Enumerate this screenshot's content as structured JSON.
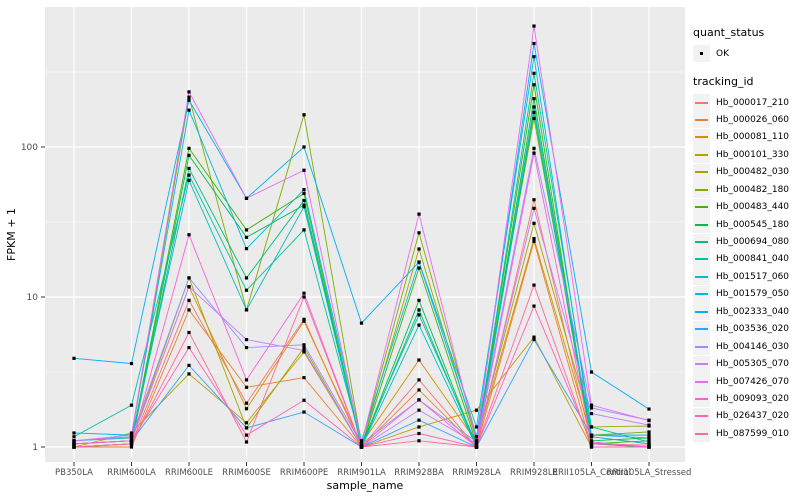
{
  "chart_data": {
    "type": "line",
    "title": "",
    "xlabel": "sample_name",
    "ylabel": "FPKM + 1",
    "y_scale": "log10",
    "y_ticks": [
      1,
      10,
      100
    ],
    "y_minor_gridlines": [
      3.1623,
      31.623,
      316.23
    ],
    "ylim": [
      0.95,
      700
    ],
    "grid": "white-major-and-minor-on-grey-panel",
    "legend_position": "right",
    "point_marker": "small-black-square",
    "panel_color": "#EBEBEB",
    "gridline_color": "#FFFFFF",
    "axis_text_color": "#4D4D4D",
    "categories": [
      "PB350LA",
      "RRIM600LA",
      "RRIM600LE",
      "RRIM600SE",
      "RRIM600PE",
      "RRIM901LA",
      "RRIM928BA",
      "RRIM928LA",
      "RRIM928LE",
      "RRII105LA_Control",
      "RRII105LA_Stressed"
    ],
    "series": [
      {
        "name": "Hb_000017_210",
        "color": "#F8766D",
        "values": [
          1.0,
          1.05,
          9.5,
          1.96,
          7.1,
          1.0,
          2.8,
          1.0,
          44.5,
          1.05,
          1.0
        ]
      },
      {
        "name": "Hb_000026_060",
        "color": "#EA8331",
        "values": [
          1.0,
          1.0,
          8.2,
          2.5,
          2.9,
          1.0,
          2.4,
          1.0,
          23.5,
          1.0,
          1.0
        ]
      },
      {
        "name": "Hb_000081_110",
        "color": "#D89000",
        "values": [
          1.05,
          1.1,
          11.7,
          1.8,
          6.9,
          1.05,
          3.8,
          1.08,
          24.5,
          1.17,
          1.05
        ]
      },
      {
        "name": "Hb_000101_330",
        "color": "#C09B00",
        "values": [
          1.0,
          1.24,
          3.07,
          1.45,
          4.3,
          1.0,
          1.36,
          1.76,
          5.4,
          1.0,
          1.0
        ]
      },
      {
        "name": "Hb_000482_030",
        "color": "#A3A500",
        "values": [
          1.05,
          1.1,
          13.4,
          1.34,
          4.6,
          1.0,
          20.9,
          1.1,
          31,
          1.36,
          1.38
        ]
      },
      {
        "name": "Hb_000482_180",
        "color": "#7CAE00",
        "values": [
          1.1,
          1.17,
          215,
          8.2,
          164,
          1.05,
          26.8,
          1.17,
          155,
          1.2,
          1.26
        ]
      },
      {
        "name": "Hb_000483_440",
        "color": "#39B600",
        "values": [
          1.05,
          1.1,
          98,
          28,
          49,
          1.0,
          15.6,
          1.05,
          260,
          1.05,
          1.1
        ]
      },
      {
        "name": "Hb_000545_180",
        "color": "#00BB4E",
        "values": [
          1.0,
          1.05,
          88,
          25,
          41,
          1.0,
          9.5,
          1.0,
          210,
          1.1,
          1.15
        ]
      },
      {
        "name": "Hb_000694_080",
        "color": "#00BF7D",
        "values": [
          1.0,
          1.05,
          72,
          13.4,
          44,
          1.0,
          8.2,
          1.0,
          170,
          1.05,
          1.0
        ]
      },
      {
        "name": "Hb_000841_040",
        "color": "#00C1A3",
        "values": [
          1.17,
          1.9,
          65,
          11.1,
          28,
          1.05,
          7.6,
          1.05,
          310,
          1.36,
          1.08
        ]
      },
      {
        "name": "Hb_001517_060",
        "color": "#00BFC4",
        "values": [
          1.1,
          1.15,
          60,
          8.2,
          40,
          1.0,
          6.5,
          1.0,
          185,
          1.17,
          1.05
        ]
      },
      {
        "name": "Hb_001579_050",
        "color": "#00BAE0",
        "values": [
          1.24,
          1.2,
          176,
          21,
          52,
          1.1,
          17.1,
          1.36,
          400,
          1.2,
          1.2
        ]
      },
      {
        "name": "Hb_002333_040",
        "color": "#00B0F6",
        "values": [
          3.9,
          3.6,
          205,
          45.5,
          100,
          6.7,
          17.1,
          1.17,
          490,
          3.16,
          1.79
        ]
      },
      {
        "name": "Hb_003536_020",
        "color": "#35A2FF",
        "values": [
          1.05,
          1.1,
          3.5,
          1.34,
          1.71,
          1.0,
          1.51,
          1.0,
          5.2,
          1.2,
          1.15
        ]
      },
      {
        "name": "Hb_004146_030",
        "color": "#9590FF",
        "values": [
          1.1,
          1.17,
          13.4,
          4.6,
          4.8,
          1.05,
          2.06,
          1.08,
          98,
          1.82,
          1.51
        ]
      },
      {
        "name": "Hb_005305_070",
        "color": "#C77CFF",
        "values": [
          1.05,
          1.1,
          11.7,
          5.2,
          4.4,
          1.0,
          1.76,
          1.05,
          39,
          1.67,
          1.4
        ]
      },
      {
        "name": "Hb_007426_070",
        "color": "#E76BF3",
        "values": [
          1.1,
          1.2,
          233,
          45.5,
          70,
          1.05,
          35.7,
          1.1,
          640,
          1.9,
          1.5
        ]
      },
      {
        "name": "Hb_009093_020",
        "color": "#FA62DB",
        "values": [
          1.0,
          1.05,
          26,
          2.8,
          10.6,
          1.0,
          2.06,
          1.0,
          91,
          1.08,
          1.0
        ]
      },
      {
        "name": "Hb_026437_020",
        "color": "#FF62BC",
        "values": [
          1.05,
          1.1,
          4.6,
          1.2,
          2.05,
          1.0,
          1.23,
          1.0,
          8.7,
          1.05,
          1.03
        ]
      },
      {
        "name": "Hb_087599_010",
        "color": "#FF6A98",
        "values": [
          1.0,
          1.05,
          5.8,
          1.08,
          10,
          1.0,
          1.1,
          1.0,
          12,
          1.0,
          1.0
        ]
      }
    ]
  },
  "legend": {
    "quant_status_title": "quant_status",
    "quant_status_items": [
      {
        "label": "OK",
        "marker": "black-point"
      }
    ],
    "tracking_id_title": "tracking_id"
  }
}
